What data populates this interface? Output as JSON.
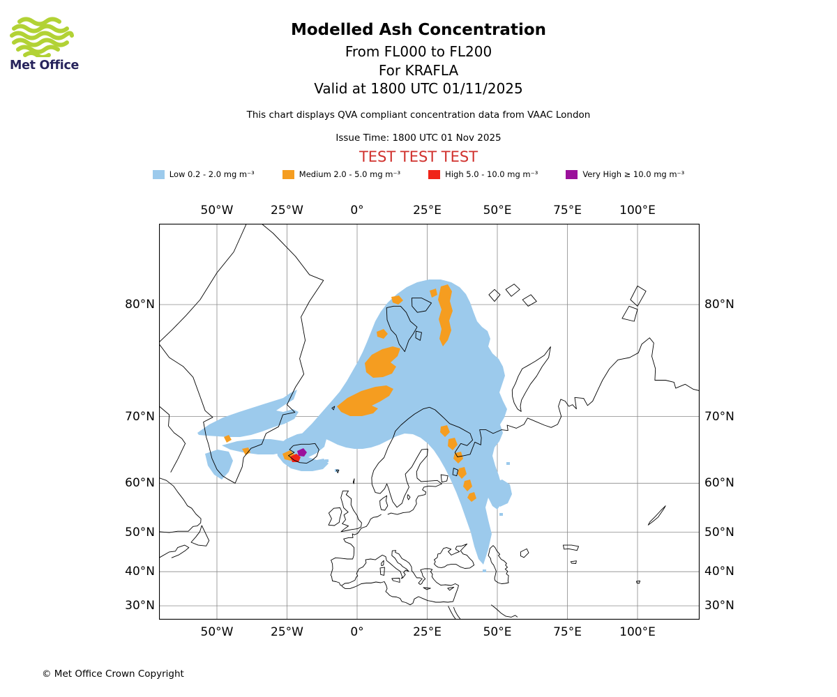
{
  "logo": {
    "brand": "Met Office",
    "icon": "met-office-waves-logo"
  },
  "header": {
    "title": "Modelled Ash Concentration",
    "flight_levels": "From FL000 to FL200",
    "volcano": "For KRAFLA",
    "valid": "Valid at 1800 UTC 01/11/2025",
    "description": "This chart displays QVA compliant concentration data from VAAC London",
    "issue_time": "Issue Time: 1800 UTC 01 Nov 2025",
    "test_banner": "TEST TEST TEST",
    "test_banner_color": "#d0312d"
  },
  "legend": {
    "items": [
      {
        "name": "low",
        "label": "Low 0.2 - 2.0 mg m⁻³",
        "color": "#9ccaec"
      },
      {
        "name": "medium",
        "label": "Medium 2.0 - 5.0 mg m⁻³",
        "color": "#f59d20"
      },
      {
        "name": "high",
        "label": "High 5.0 - 10.0 mg m⁻³",
        "color": "#f02418"
      },
      {
        "name": "very_high",
        "label": "Very High  ≥  10.0 mg m⁻³",
        "color": "#9b109b"
      }
    ]
  },
  "map": {
    "x_ticks": [
      "50°W",
      "25°W",
      "0°",
      "25°E",
      "50°E",
      "75°E",
      "100°E"
    ],
    "y_ticks": [
      "80°N",
      "70°N",
      "60°N",
      "50°N",
      "40°N",
      "30°N"
    ]
  },
  "footer": {
    "copyright": "© Met Office Crown Copyright"
  }
}
